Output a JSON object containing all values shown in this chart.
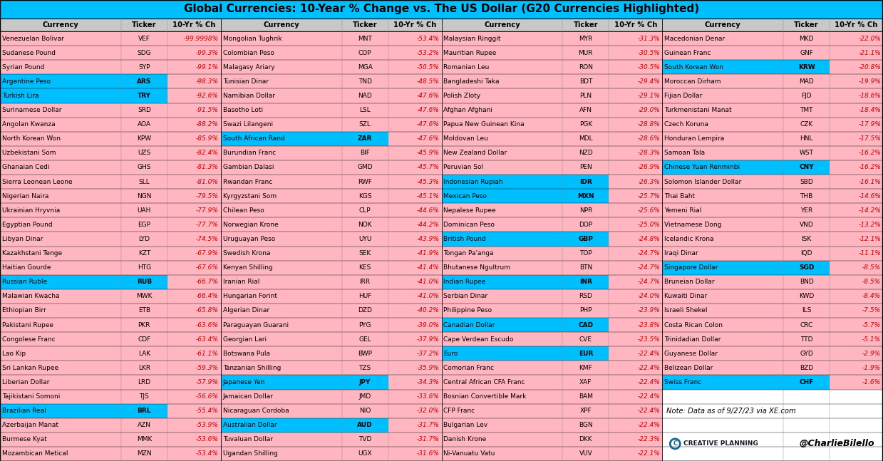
{
  "title": "Global Currencies: 10-Year % Change vs. The US Dollar (G20 Currencies Highlighted)",
  "note": "Note: Data as of 9/27/23 via XE.com",
  "cyan_color": "#00BFFF",
  "pink_bg": "#FFB6C1",
  "white_bg": "#FFFFFF",
  "red_text": "#CC0000",
  "black_text": "#000000",
  "gray_bg": "#C8C8C8",
  "columns": [
    [
      [
        "Venezuelan Bolivar",
        "VEF",
        "-99.9998%",
        false
      ],
      [
        "Sudanese Pound",
        "SDG",
        "-99.3%",
        false
      ],
      [
        "Syrian Pound",
        "SYP",
        "-99.1%",
        false
      ],
      [
        "Argentine Peso",
        "ARS",
        "-98.3%",
        true
      ],
      [
        "Turkish Lira",
        "TRY",
        "-92.6%",
        true
      ],
      [
        "Surinamese Dollar",
        "SRD",
        "-91.5%",
        false
      ],
      [
        "Angolan Kwanza",
        "AOA",
        "-88.2%",
        false
      ],
      [
        "North Korean Won",
        "KPW",
        "-85.9%",
        false
      ],
      [
        "Uzbekistani Som",
        "UZS",
        "-82.4%",
        false
      ],
      [
        "Ghanaian Cedi",
        "GHS",
        "-81.3%",
        false
      ],
      [
        "Sierra Leonean Leone",
        "SLL",
        "-81.0%",
        false
      ],
      [
        "Nigerian Naira",
        "NGN",
        "-79.5%",
        false
      ],
      [
        "Ukrainian Hryvnia",
        "UAH",
        "-77.9%",
        false
      ],
      [
        "Egyptian Pound",
        "EGP",
        "-77.7%",
        false
      ],
      [
        "Libyan Dinar",
        "LYD",
        "-74.5%",
        false
      ],
      [
        "Kazakhstani Tenge",
        "KZT",
        "-67.9%",
        false
      ],
      [
        "Haitian Gourde",
        "HTG",
        "-67.6%",
        false
      ],
      [
        "Russian Ruble",
        "RUB",
        "-66.7%",
        true
      ],
      [
        "Malawian Kwacha",
        "MWK",
        "-66.4%",
        false
      ],
      [
        "Ethiopian Birr",
        "ETB",
        "-65.8%",
        false
      ],
      [
        "Pakistani Rupee",
        "PKR",
        "-63.6%",
        false
      ],
      [
        "Congolese Franc",
        "CDF",
        "-63.4%",
        false
      ],
      [
        "Lao Kip",
        "LAK",
        "-61.1%",
        false
      ],
      [
        "Sri Lankan Rupee",
        "LKR",
        "-59.3%",
        false
      ],
      [
        "Liberian Dollar",
        "LRD",
        "-57.9%",
        false
      ],
      [
        "Tajikistani Somoni",
        "TJS",
        "-56.6%",
        false
      ],
      [
        "Brazilian Real",
        "BRL",
        "-55.4%",
        true
      ],
      [
        "Azerbaijan Manat",
        "AZN",
        "-53.9%",
        false
      ],
      [
        "Burmese Kyat",
        "MMK",
        "-53.6%",
        false
      ],
      [
        "Mozambican Metical",
        "MZN",
        "-53.4%",
        false
      ]
    ],
    [
      [
        "Mongolian Tughrik",
        "MNT",
        "-53.4%",
        false
      ],
      [
        "Colombian Peso",
        "COP",
        "-53.2%",
        false
      ],
      [
        "Malagasy Ariary",
        "MGA",
        "-50.5%",
        false
      ],
      [
        "Tunisian Dinar",
        "TND",
        "-48.5%",
        false
      ],
      [
        "Namibian Dollar",
        "NAD",
        "-47.6%",
        false
      ],
      [
        "Basotho Loti",
        "LSL",
        "-47.6%",
        false
      ],
      [
        "Swazi Lilangeni",
        "SZL",
        "-47.6%",
        false
      ],
      [
        "South African Rand",
        "ZAR",
        "-47.6%",
        true
      ],
      [
        "Burundian Franc",
        "BIF",
        "-45.9%",
        false
      ],
      [
        "Gambian Dalasi",
        "GMD",
        "-45.7%",
        false
      ],
      [
        "Rwandan Franc",
        "RWF",
        "-45.3%",
        false
      ],
      [
        "Kyrgyzstani Som",
        "KGS",
        "-45.1%",
        false
      ],
      [
        "Chilean Peso",
        "CLP",
        "-44.6%",
        false
      ],
      [
        "Norwegian Krone",
        "NOK",
        "-44.2%",
        false
      ],
      [
        "Uruguayan Peso",
        "UYU",
        "-43.9%",
        false
      ],
      [
        "Swedish Krona",
        "SEK",
        "-41.9%",
        false
      ],
      [
        "Kenyan Shilling",
        "KES",
        "-41.4%",
        false
      ],
      [
        "Iranian Rial",
        "IRR",
        "-41.0%",
        false
      ],
      [
        "Hungarian Forint",
        "HUF",
        "-41.0%",
        false
      ],
      [
        "Algerian Dinar",
        "DZD",
        "-40.2%",
        false
      ],
      [
        "Paraguayan Guarani",
        "PYG",
        "-39.0%",
        false
      ],
      [
        "Georgian Lari",
        "GEL",
        "-37.9%",
        false
      ],
      [
        "Botswana Pula",
        "BWP",
        "-37.2%",
        false
      ],
      [
        "Tanzanian Shilling",
        "TZS",
        "-35.9%",
        false
      ],
      [
        "Japanese Yen",
        "JPY",
        "-34.3%",
        true
      ],
      [
        "Jamaican Dollar",
        "JMD",
        "-33.6%",
        false
      ],
      [
        "Nicaraguan Cordoba",
        "NIO",
        "-32.0%",
        false
      ],
      [
        "Australian Dollar",
        "AUD",
        "-31.7%",
        true
      ],
      [
        "Tuvaluan Dollar",
        "TVD",
        "-31.7%",
        false
      ],
      [
        "Ugandan Shilling",
        "UGX",
        "-31.6%",
        false
      ]
    ],
    [
      [
        "Malaysian Ringgit",
        "MYR",
        "-31.3%",
        false
      ],
      [
        "Mauritian Rupee",
        "MUR",
        "-30.5%",
        false
      ],
      [
        "Romanian Leu",
        "RON",
        "-30.5%",
        false
      ],
      [
        "Bangladeshi Taka",
        "BDT",
        "-29.4%",
        false
      ],
      [
        "Polish Zloty",
        "PLN",
        "-29.1%",
        false
      ],
      [
        "Afghan Afghani",
        "AFN",
        "-29.0%",
        false
      ],
      [
        "Papua New Guinean Kina",
        "PGK",
        "-28.8%",
        false
      ],
      [
        "Moldovan Leu",
        "MDL",
        "-28.6%",
        false
      ],
      [
        "New Zealand Dollar",
        "NZD",
        "-28.3%",
        false
      ],
      [
        "Peruvian Sol",
        "PEN",
        "-26.9%",
        false
      ],
      [
        "Indonesian Rupiah",
        "IDR",
        "-26.3%",
        true
      ],
      [
        "Mexican Peso",
        "MXN",
        "-25.7%",
        true
      ],
      [
        "Nepalese Rupee",
        "NPR",
        "-25.6%",
        false
      ],
      [
        "Dominican Peso",
        "DOP",
        "-25.0%",
        false
      ],
      [
        "British Pound",
        "GBP",
        "-24.8%",
        true
      ],
      [
        "Tongan Pa'anga",
        "TOP",
        "-24.7%",
        false
      ],
      [
        "Bhutanese Ngultrum",
        "BTN",
        "-24.7%",
        false
      ],
      [
        "Indian Rupee",
        "INR",
        "-24.7%",
        true
      ],
      [
        "Serbian Dinar",
        "RSD",
        "-24.0%",
        false
      ],
      [
        "Philippine Peso",
        "PHP",
        "-23.9%",
        false
      ],
      [
        "Canadian Dollar",
        "CAD",
        "-23.8%",
        true
      ],
      [
        "Cape Verdean Escudo",
        "CVE",
        "-23.5%",
        false
      ],
      [
        "Euro",
        "EUR",
        "-22.4%",
        true
      ],
      [
        "Comorian Franc",
        "KMF",
        "-22.4%",
        false
      ],
      [
        "Central African CFA Franc",
        "XAF",
        "-22.4%",
        false
      ],
      [
        "Bosnian Convertible Mark",
        "BAM",
        "-22.4%",
        false
      ],
      [
        "CFP Franc",
        "XPF",
        "-22.4%",
        false
      ],
      [
        "Bulgarian Lev",
        "BGN",
        "-22.4%",
        false
      ],
      [
        "Danish Krone",
        "DKK",
        "-22.3%",
        false
      ],
      [
        "Ni-Vanuatu Vatu",
        "VUV",
        "-22.1%",
        false
      ]
    ],
    [
      [
        "Macedonian Denar",
        "MKD",
        "-22.0%",
        false
      ],
      [
        "Guinean Franc",
        "GNF",
        "-21.1%",
        false
      ],
      [
        "South Korean Won",
        "KRW",
        "-20.8%",
        true
      ],
      [
        "Moroccan Dirham",
        "MAD",
        "-19.9%",
        false
      ],
      [
        "Fijian Dollar",
        "FJD",
        "-18.6%",
        false
      ],
      [
        "Turkmenistani Manat",
        "TMT",
        "-18.4%",
        false
      ],
      [
        "Czech Koruna",
        "CZK",
        "-17.9%",
        false
      ],
      [
        "Honduran Lempira",
        "HNL",
        "-17.5%",
        false
      ],
      [
        "Samoan Tala",
        "WST",
        "-16.2%",
        false
      ],
      [
        "Chinese Yuan Renminbi",
        "CNY",
        "-16.2%",
        true
      ],
      [
        "Solomon Islander Dollar",
        "SBD",
        "-16.1%",
        false
      ],
      [
        "Thai Baht",
        "THB",
        "-14.6%",
        false
      ],
      [
        "Yemeni Rial",
        "YER",
        "-14.2%",
        false
      ],
      [
        "Vietnamese Dong",
        "VND",
        "-13.2%",
        false
      ],
      [
        "Icelandic Krona",
        "ISK",
        "-12.1%",
        false
      ],
      [
        "Iraqi Dinar",
        "IQD",
        "-11.1%",
        false
      ],
      [
        "Singapore Dollar",
        "SGD",
        "-8.5%",
        true
      ],
      [
        "Bruneian Dollar",
        "BND",
        "-8.5%",
        false
      ],
      [
        "Kuwaiti Dinar",
        "KWD",
        "-8.4%",
        false
      ],
      [
        "Israeli Shekel",
        "ILS",
        "-7.5%",
        false
      ],
      [
        "Costa Rican Colon",
        "CRC",
        "-5.7%",
        false
      ],
      [
        "Trinidadian Dollar",
        "TTD",
        "-5.1%",
        false
      ],
      [
        "Guyanese Dollar",
        "GYD",
        "-2.9%",
        false
      ],
      [
        "Belizean Dollar",
        "BZD",
        "-1.9%",
        false
      ],
      [
        "Swiss Franc",
        "CHF",
        "-1.6%",
        true
      ],
      [
        "",
        "",
        "",
        false
      ],
      [
        "",
        "",
        "",
        false
      ],
      [
        "",
        "",
        "",
        false
      ],
      [
        "",
        "",
        "",
        false
      ],
      [
        "",
        "",
        "",
        false
      ]
    ]
  ]
}
